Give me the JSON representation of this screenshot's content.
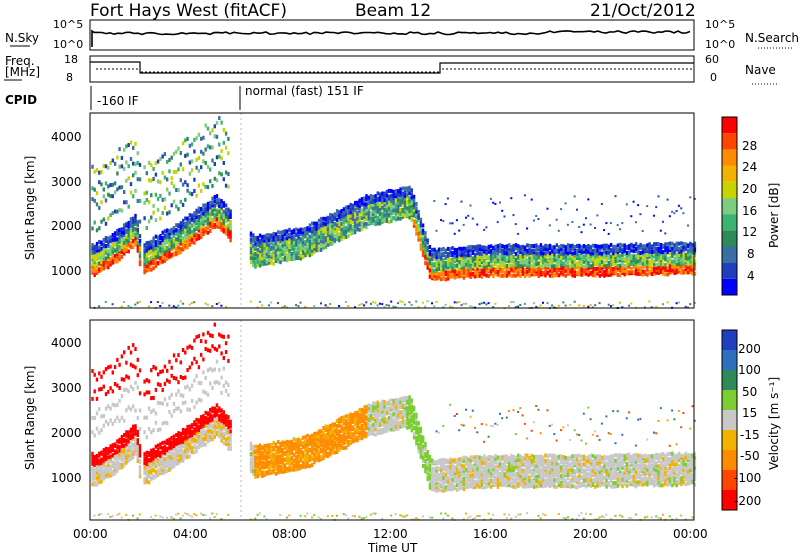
{
  "header": {
    "station": "Fort Hays West (fitACF)",
    "beam": "Beam 12",
    "date": "21/Oct/2012"
  },
  "status_panels": {
    "nsky_label": "N.Sky",
    "nsky_ticks": [
      "10^5",
      "10^0"
    ],
    "nsearch_label": "N.Search",
    "nsearch_ticks": [
      "10^5",
      "10^0"
    ],
    "freq_label_top": "Freq.",
    "freq_label_bottom": "[MHz]",
    "freq_ticks": [
      "18",
      "8"
    ],
    "nave_label": "Nave",
    "nave_ticks": [
      "60",
      "0"
    ],
    "cpid_label": "CPID",
    "cpid_segments": [
      "-160 IF",
      "normal (fast) 151 IF"
    ]
  },
  "chart_data": [
    {
      "type": "heatmap",
      "name": "power",
      "ylabel": "Slant Range [km]",
      "yticks": [
        "4000",
        "3000",
        "2000",
        "1000"
      ],
      "ylim": [
        180,
        4500
      ],
      "xlim_hours": [
        0,
        24
      ],
      "colorbar": {
        "label": "Power [dB]",
        "ticks": [
          "28",
          "24",
          "20",
          "16",
          "12",
          "8",
          "4"
        ],
        "colors": [
          "#0000ff",
          "#1f3fbf",
          "#3a6ea5",
          "#2e8b57",
          "#3cb371",
          "#7ccd7c",
          "#c8d400",
          "#f2b200",
          "#ff8c00",
          "#ff4500",
          "#ff0000"
        ]
      },
      "dominant_echo": [
        {
          "hour": 0.1,
          "range_km": 1100
        },
        {
          "hour": 1.0,
          "range_km": 1400
        },
        {
          "hour": 1.8,
          "range_km": 1800
        },
        {
          "hour": 2.0,
          "range_km": 1100
        },
        {
          "hour": 3.5,
          "range_km": 1600
        },
        {
          "hour": 5.0,
          "range_km": 2200
        },
        {
          "hour": 6.5,
          "range_km": 1300
        },
        {
          "hour": 8.5,
          "range_km": 1500
        },
        {
          "hour": 11.0,
          "range_km": 2200
        },
        {
          "hour": 12.7,
          "range_km": 2400
        },
        {
          "hour": 13.5,
          "range_km": 1000
        },
        {
          "hour": 16.0,
          "range_km": 1100
        },
        {
          "hour": 20.0,
          "range_km": 1100
        },
        {
          "hour": 24.0,
          "range_km": 1150
        }
      ]
    },
    {
      "type": "heatmap",
      "name": "velocity",
      "ylabel": "Slant Range [km]",
      "yticks": [
        "4000",
        "3000",
        "2000",
        "1000"
      ],
      "ylim": [
        180,
        4500
      ],
      "xlabel": "Time UT",
      "xticks": [
        "00:00",
        "04:00",
        "08:00",
        "12:00",
        "16:00",
        "20:00",
        "00:00"
      ],
      "colorbar": {
        "label": "Velocity [m s⁻¹]",
        "ticks": [
          "200",
          "100",
          "50",
          "15",
          "-15",
          "-50",
          "-100",
          "-200"
        ],
        "colors": [
          "#1f3fbf",
          "#2f6fbf",
          "#2e8b57",
          "#7ccd32",
          "#c8c8c8",
          "#f2b200",
          "#ff8c00",
          "#ff4500",
          "#ff0000"
        ]
      },
      "dominant_velocity": [
        {
          "hour_range": [
            0,
            6
          ],
          "velocity_ms": -5
        },
        {
          "hour_range": [
            6.5,
            11
          ],
          "velocity_ms": -60
        },
        {
          "hour_range": [
            12.5,
            13.5
          ],
          "velocity_ms": 30
        },
        {
          "hour_range": [
            14,
            24
          ],
          "velocity_ms": 0
        }
      ]
    }
  ]
}
